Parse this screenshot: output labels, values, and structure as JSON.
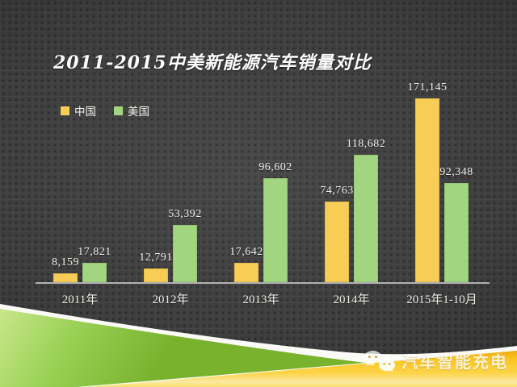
{
  "chart_data": {
    "type": "bar",
    "title": "2011-2015中美新能源汽车销量对比",
    "categories": [
      "2011年",
      "2012年",
      "2013年",
      "2014年",
      "2015年1-10月"
    ],
    "series": [
      {
        "name": "中国",
        "color": "#f8cd55",
        "values": [
          8159,
          12791,
          17642,
          74763,
          171145
        ],
        "labels": [
          "8,159",
          "12,791",
          "17,642",
          "74,763",
          "171,145"
        ]
      },
      {
        "name": "美国",
        "color": "#a2d57f",
        "values": [
          17821,
          53392,
          96602,
          118682,
          92348
        ],
        "labels": [
          "17,821",
          "53,392",
          "96,602",
          "118,682",
          "92,348"
        ]
      }
    ],
    "legend_position": "top-left",
    "grid": false,
    "xlabel": "",
    "ylabel": "",
    "ylim": [
      0,
      180000
    ]
  },
  "watermark": {
    "icon": "wechat-icon",
    "label": "汽车智能充电"
  },
  "theme": {
    "background": "#3d3d3d",
    "text_color": "#f2f0ea",
    "axis_color": "#c6c6c6",
    "ribbon_green_light": "#c3e47f",
    "ribbon_green_dark": "#79b32e",
    "ribbon_gold_dark": "#eda41c",
    "ribbon_gold_bright": "#fdd44a"
  }
}
